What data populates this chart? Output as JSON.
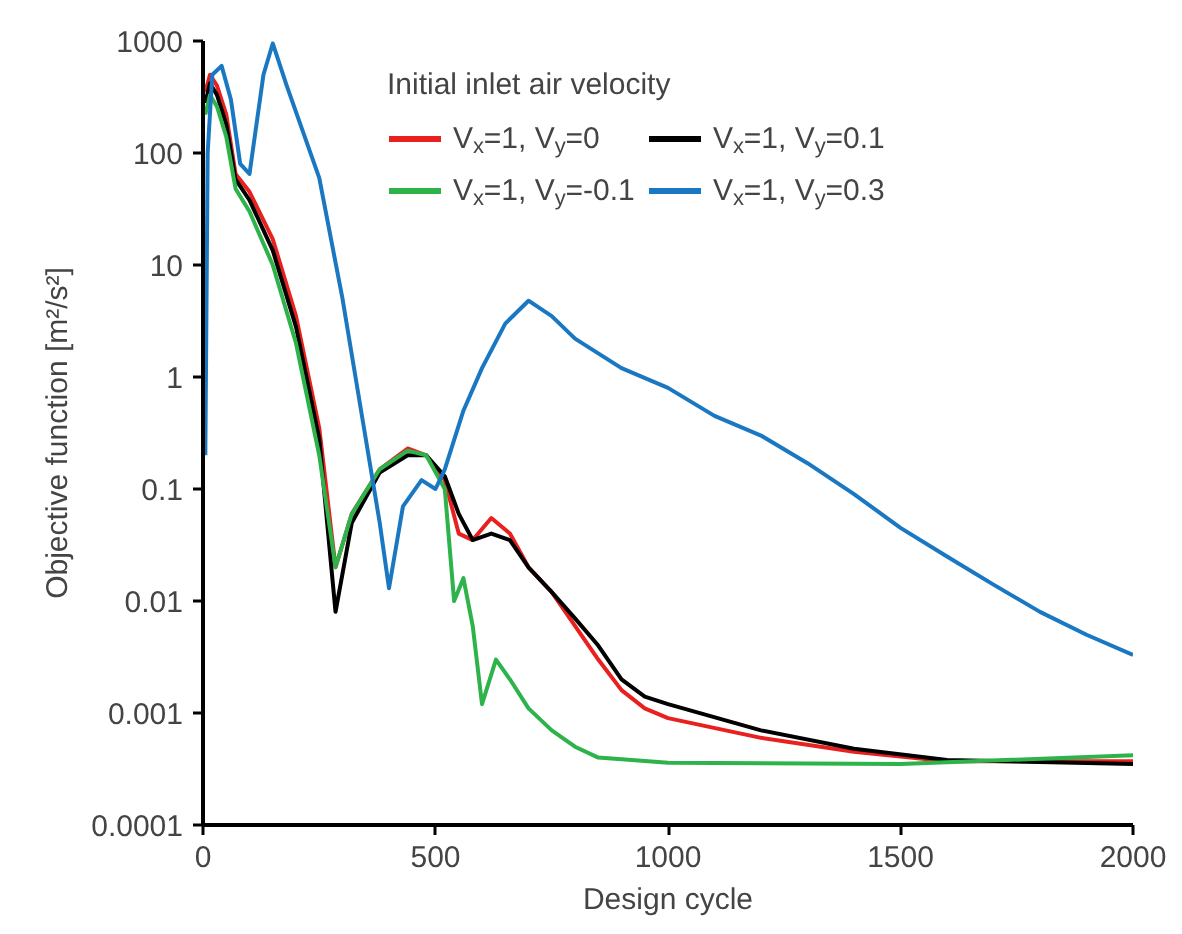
{
  "chart_data": {
    "type": "line",
    "xlabel": "Design cycle",
    "ylabel": "Objective function [m²/s²]",
    "legend_title": "Initial inlet air velocity",
    "legend": "top right",
    "log": "y",
    "grid": false,
    "marker": "none",
    "line_style": "solid",
    "xlim": [
      0,
      2000
    ],
    "xticks": [
      0,
      500,
      1000,
      1500,
      2000
    ],
    "ylim": [
      0.0001,
      1000
    ],
    "yticks": [
      0.0001,
      0.001,
      0.01,
      0.1,
      1,
      10,
      100,
      1000
    ],
    "series": [
      {
        "name": "V$_{x}$=1, V$_{y}$=0",
        "color": "#e8201e",
        "x": [
          5,
          15,
          30,
          50,
          70,
          100,
          150,
          200,
          250,
          285,
          320,
          380,
          440,
          480,
          520,
          550,
          580,
          620,
          660,
          700,
          750,
          800,
          850,
          900,
          950,
          1000,
          1200,
          1400,
          1600,
          2000
        ],
        "values": [
          350,
          500,
          400,
          220,
          65,
          45,
          17,
          3.5,
          0.35,
          0.02,
          0.06,
          0.15,
          0.23,
          0.2,
          0.12,
          0.04,
          0.035,
          0.055,
          0.04,
          0.02,
          0.012,
          0.006,
          0.003,
          0.0016,
          0.0011,
          0.0009,
          0.0006,
          0.00045,
          0.00037,
          0.00037
        ]
      },
      {
        "name": "V$_{x}$=1, V$_{y}$=0.1",
        "color": "#000000",
        "x": [
          5,
          15,
          30,
          50,
          70,
          100,
          150,
          200,
          250,
          285,
          320,
          380,
          440,
          480,
          520,
          550,
          580,
          620,
          660,
          700,
          750,
          800,
          850,
          900,
          950,
          1000,
          1200,
          1400,
          1600,
          2000
        ],
        "values": [
          280,
          420,
          330,
          180,
          58,
          38,
          13.5,
          2.8,
          0.28,
          0.008,
          0.05,
          0.14,
          0.2,
          0.2,
          0.13,
          0.06,
          0.035,
          0.04,
          0.035,
          0.02,
          0.012,
          0.007,
          0.004,
          0.002,
          0.0014,
          0.0012,
          0.0007,
          0.00048,
          0.00038,
          0.00035
        ]
      },
      {
        "name": "V$_{x}$=1, V$_{y}$=-0.1",
        "color": "#2db34a",
        "x": [
          5,
          15,
          30,
          50,
          70,
          100,
          150,
          200,
          250,
          285,
          320,
          380,
          440,
          480,
          520,
          540,
          560,
          580,
          600,
          630,
          660,
          700,
          750,
          800,
          850,
          1000,
          1500,
          2000
        ],
        "values": [
          220,
          330,
          260,
          140,
          48,
          30,
          10,
          2,
          0.2,
          0.02,
          0.06,
          0.15,
          0.22,
          0.2,
          0.1,
          0.01,
          0.016,
          0.006,
          0.0012,
          0.003,
          0.002,
          0.0011,
          0.0007,
          0.0005,
          0.0004,
          0.00036,
          0.00035,
          0.00042
        ]
      },
      {
        "name": "V$_{x}$=1, V$_{y}$=0.3",
        "color": "#1a78c2",
        "x": [
          5,
          10,
          20,
          40,
          60,
          80,
          100,
          130,
          150,
          180,
          250,
          300,
          340,
          380,
          400,
          430,
          470,
          500,
          520,
          560,
          600,
          650,
          700,
          750,
          800,
          900,
          1000,
          1100,
          1200,
          1300,
          1400,
          1500,
          1600,
          1700,
          1800,
          1900,
          2000
        ],
        "values": [
          0.2,
          100,
          500,
          600,
          300,
          80,
          65,
          500,
          950,
          400,
          60,
          5,
          0.5,
          0.05,
          0.013,
          0.07,
          0.12,
          0.1,
          0.15,
          0.5,
          1.2,
          3,
          4.8,
          3.5,
          2.2,
          1.2,
          0.8,
          0.45,
          0.3,
          0.17,
          0.09,
          0.045,
          0.025,
          0.014,
          0.008,
          0.005,
          0.0033
        ]
      }
    ]
  }
}
